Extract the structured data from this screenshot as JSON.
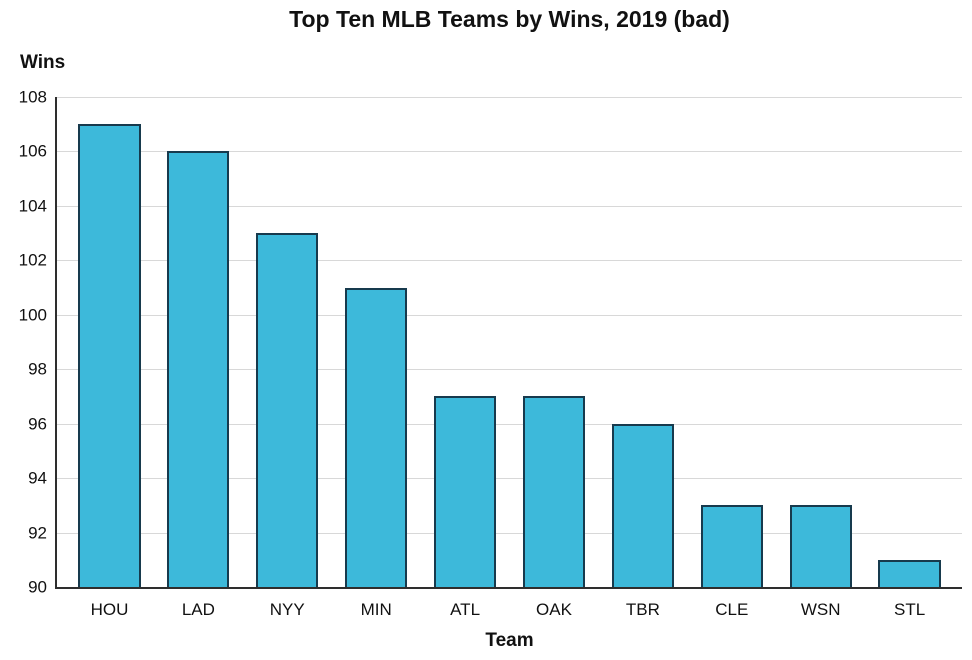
{
  "chart_data": {
    "type": "bar",
    "title": "Top Ten MLB Teams by Wins, 2019 (bad)",
    "xlabel": "Team",
    "ylabel": "Wins",
    "categories": [
      "HOU",
      "LAD",
      "NYY",
      "MIN",
      "ATL",
      "OAK",
      "TBR",
      "CLE",
      "WSN",
      "STL"
    ],
    "values": [
      107,
      106,
      103,
      101,
      97,
      97,
      96,
      93,
      93,
      91
    ],
    "ylim": [
      90,
      108
    ],
    "yticks": [
      90,
      92,
      94,
      96,
      98,
      100,
      102,
      104,
      106,
      108
    ],
    "grid": "horizontal",
    "legend": "none",
    "colors": {
      "bar_fill": "#3db9da",
      "bar_border": "#173a4d",
      "axis": "#2e2e2e",
      "gridline": "#d8d8d8",
      "text": "#111111"
    }
  }
}
